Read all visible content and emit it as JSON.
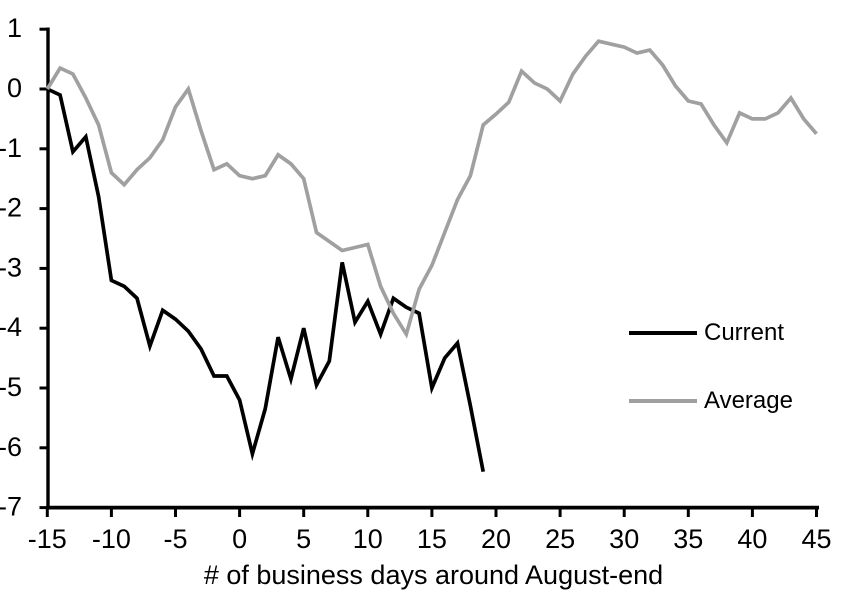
{
  "chart_data": {
    "type": "line",
    "title": "",
    "xlabel": "# of business days around August-end",
    "ylabel": "",
    "xlim": [
      -15,
      45
    ],
    "ylim": [
      -7,
      1
    ],
    "x_ticks": [
      -15,
      -10,
      -5,
      0,
      5,
      10,
      15,
      20,
      25,
      30,
      35,
      40,
      45
    ],
    "y_ticks": [
      1,
      0,
      -1,
      -2,
      -3,
      -4,
      -5,
      -6,
      -7
    ],
    "grid": false,
    "legend_position": "inside-right",
    "axis_color": "#000000",
    "series": [
      {
        "name": "Current",
        "color": "#000000",
        "x": [
          -15,
          -14,
          -13,
          -12,
          -11,
          -10,
          -9,
          -8,
          -7,
          -6,
          -5,
          -4,
          -3,
          -2,
          -1,
          0,
          1,
          2,
          3,
          4,
          5,
          6,
          7,
          8,
          9,
          10,
          11,
          12,
          13,
          14,
          15,
          16,
          17,
          18,
          19
        ],
        "values": [
          0,
          -0.1,
          -1.05,
          -0.8,
          -1.8,
          -3.2,
          -3.3,
          -3.5,
          -4.3,
          -3.7,
          -3.85,
          -4.05,
          -4.35,
          -4.8,
          -4.8,
          -5.2,
          -6.1,
          -5.35,
          -4.15,
          -4.85,
          -4.0,
          -4.95,
          -4.55,
          -2.9,
          -3.9,
          -3.55,
          -4.1,
          -3.5,
          -3.65,
          -3.75,
          -5.0,
          -4.5,
          -4.25,
          -5.3,
          -6.4
        ]
      },
      {
        "name": "Average",
        "color": "#a0a0a0",
        "x": [
          -15,
          -14,
          -13,
          -12,
          -11,
          -10,
          -9,
          -8,
          -7,
          -6,
          -5,
          -4,
          -3,
          -2,
          -1,
          0,
          1,
          2,
          3,
          4,
          5,
          6,
          7,
          8,
          9,
          10,
          11,
          12,
          13,
          14,
          15,
          16,
          17,
          18,
          19,
          20,
          21,
          22,
          23,
          24,
          25,
          26,
          27,
          28,
          29,
          30,
          31,
          32,
          33,
          34,
          35,
          36,
          37,
          38,
          39,
          40,
          41,
          42,
          43,
          44,
          45
        ],
        "values": [
          0,
          0.35,
          0.25,
          -0.15,
          -0.6,
          -1.4,
          -1.6,
          -1.35,
          -1.15,
          -0.85,
          -0.3,
          0.0,
          -0.7,
          -1.35,
          -1.25,
          -1.45,
          -1.5,
          -1.45,
          -1.1,
          -1.25,
          -1.5,
          -2.4,
          -2.55,
          -2.7,
          -2.65,
          -2.6,
          -3.3,
          -3.75,
          -4.1,
          -3.35,
          -2.95,
          -2.4,
          -1.85,
          -1.45,
          -0.6,
          -0.42,
          -0.22,
          0.3,
          0.1,
          0.0,
          -0.2,
          0.25,
          0.55,
          0.8,
          0.75,
          0.7,
          0.6,
          0.65,
          0.4,
          0.05,
          -0.2,
          -0.25,
          -0.6,
          -0.9,
          -0.4,
          -0.5,
          -0.5,
          -0.4,
          -0.15,
          -0.5,
          -0.75
        ]
      }
    ]
  }
}
